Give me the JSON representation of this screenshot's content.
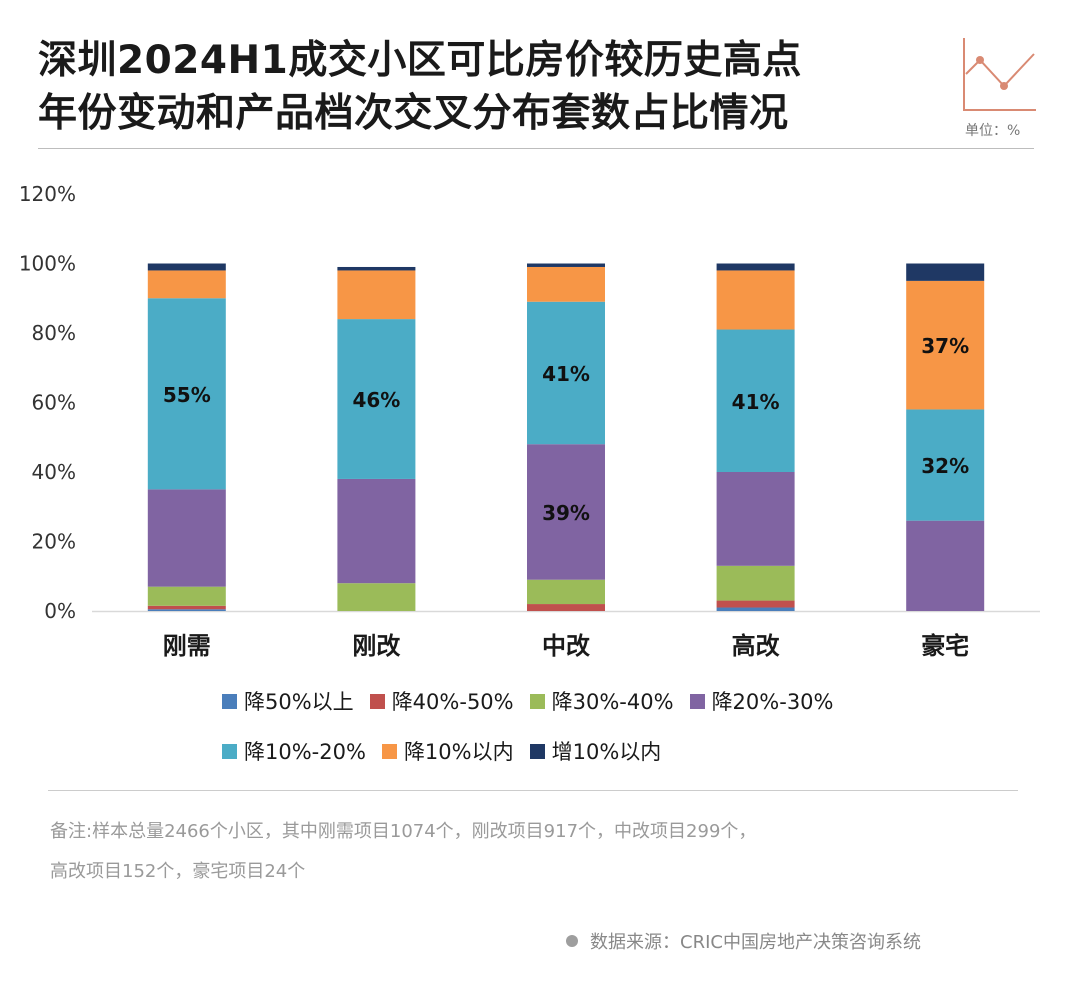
{
  "title_lines": [
    "深圳2024H1成交小区可比房价较历史高点",
    "年份变动和产品档次交叉分布套数占比情况"
  ],
  "unit_label": "单位：%",
  "chart_data": {
    "type": "bar",
    "stacked": true,
    "title": "深圳2024H1成交小区可比房价较历史高点年份变动和产品档次交叉分布套数占比情况",
    "categories": [
      "刚需",
      "刚改",
      "中改",
      "高改",
      "豪宅"
    ],
    "ylim": [
      0,
      120
    ],
    "y_ticks": [
      "0%",
      "20%",
      "40%",
      "60%",
      "80%",
      "100%",
      "120%"
    ],
    "grid": false,
    "legend_position": "bottom",
    "series": [
      {
        "name": "降50%以上",
        "color": "#4a7ebb",
        "values": [
          0.5,
          0,
          0,
          1,
          0
        ]
      },
      {
        "name": "降40%-50%",
        "color": "#c0504d",
        "values": [
          1,
          0,
          2,
          2,
          0
        ]
      },
      {
        "name": "降30%-40%",
        "color": "#9bbb59",
        "values": [
          5.5,
          8,
          7,
          10,
          0
        ]
      },
      {
        "name": "降20%-30%",
        "color": "#8064a2",
        "values": [
          28,
          30,
          39,
          27,
          26
        ]
      },
      {
        "name": "降10%-20%",
        "color": "#4bacc6",
        "values": [
          55,
          46,
          41,
          41,
          32
        ]
      },
      {
        "name": "降10%以内",
        "color": "#f79646",
        "values": [
          8,
          14,
          10,
          17,
          37
        ]
      },
      {
        "name": "增10%以内",
        "color": "#1f3864",
        "values": [
          2,
          1,
          1,
          2,
          5
        ]
      }
    ],
    "data_labels": [
      {
        "category": 0,
        "series": 4,
        "text": "55%"
      },
      {
        "category": 1,
        "series": 4,
        "text": "46%"
      },
      {
        "category": 2,
        "series": 4,
        "text": "41%"
      },
      {
        "category": 2,
        "series": 3,
        "text": "39%"
      },
      {
        "category": 3,
        "series": 4,
        "text": "41%"
      },
      {
        "category": 4,
        "series": 5,
        "text": "37%"
      },
      {
        "category": 4,
        "series": 4,
        "text": "32%"
      }
    ]
  },
  "note_lines": [
    "备注:样本总量2466个小区，其中刚需项目1074个，刚改项目917个，中改项目299个，",
    "高改项目152个，豪宅项目24个"
  ],
  "source": "数据来源：CRIC中国房地产决策咨询系统",
  "colors": {
    "logo_line": "#d98a73",
    "axis": "#d9d9d9"
  }
}
